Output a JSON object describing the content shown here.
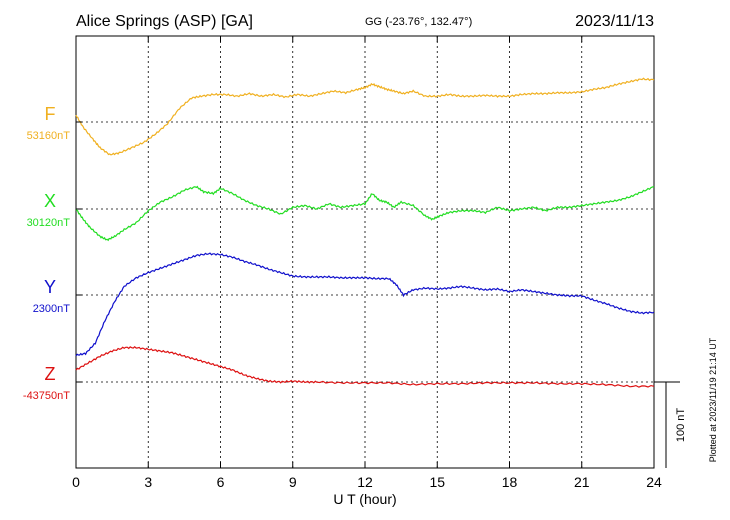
{
  "header": {
    "station": "Alice Springs (ASP)  [GA]",
    "coords": "GG (-23.76°, 132.47°)",
    "date": "2023/11/13"
  },
  "footer": {
    "plotted": "Plotted at 2023/11/19 21:14 UT"
  },
  "scale_bar": {
    "label": "100 nT",
    "value_nT": 100
  },
  "colors": {
    "F": "#f0b020",
    "X": "#22dd22",
    "Y": "#1010cc",
    "Z": "#dd1111",
    "axis": "#000000",
    "grid": "#000000"
  },
  "chart_data": {
    "type": "line",
    "xlabel": "U T (hour)",
    "xlim": [
      0,
      24
    ],
    "xticks": [
      0,
      3,
      6,
      9,
      12,
      15,
      18,
      21,
      24
    ],
    "grid": true,
    "series": [
      {
        "name": "F",
        "baseline_label": "53160nT",
        "baseline_nT": 53160,
        "x": [
          0,
          0.3,
          0.7,
          1,
          1.4,
          1.8,
          2.3,
          2.8,
          3.3,
          3.8,
          4.3,
          4.8,
          5.2,
          5.7,
          6.2,
          6.7,
          7.2,
          7.7,
          8.2,
          8.7,
          9.2,
          9.7,
          10.2,
          10.7,
          11.2,
          11.7,
          12,
          12.3,
          12.6,
          12.9,
          13.2,
          13.6,
          14,
          14.5,
          15,
          15.5,
          16,
          16.5,
          17,
          17.5,
          18,
          18.5,
          19,
          19.5,
          20,
          20.5,
          21,
          21.5,
          22,
          22.5,
          23,
          23.5,
          24
        ],
        "y": [
          8,
          -6,
          -20,
          -30,
          -38,
          -36,
          -30,
          -24,
          -14,
          -2,
          16,
          28,
          30,
          32,
          32,
          30,
          33,
          30,
          32,
          29,
          32,
          30,
          33,
          36,
          34,
          38,
          40,
          44,
          41,
          38,
          36,
          33,
          36,
          30,
          30,
          32,
          30,
          30,
          31,
          30,
          30,
          32,
          33,
          33,
          34,
          34,
          35,
          38,
          40,
          44,
          47,
          50,
          49
        ]
      },
      {
        "name": "X",
        "baseline_label": "30120nT",
        "baseline_nT": 30120,
        "x": [
          0,
          0.3,
          0.6,
          1,
          1.3,
          1.6,
          2,
          2.5,
          3,
          3.5,
          4,
          4.5,
          5,
          5.3,
          5.7,
          6,
          6.5,
          7,
          7.5,
          8,
          8.5,
          9,
          9.5,
          10,
          10.5,
          11,
          11.5,
          12,
          12.3,
          12.6,
          12.9,
          13.2,
          13.5,
          14,
          14.5,
          14.8,
          15.1,
          15.5,
          16,
          16.5,
          17,
          17.5,
          18,
          18.5,
          19,
          19.5,
          20,
          20.5,
          21,
          21.5,
          22,
          22.5,
          23,
          23.5,
          24
        ],
        "y": [
          0,
          -12,
          -22,
          -32,
          -36,
          -32,
          -24,
          -16,
          -2,
          8,
          14,
          22,
          26,
          20,
          18,
          24,
          18,
          10,
          4,
          0,
          -6,
          2,
          4,
          0,
          6,
          2,
          4,
          6,
          18,
          10,
          8,
          2,
          8,
          4,
          -8,
          -12,
          -8,
          -4,
          -2,
          -2,
          -4,
          2,
          -2,
          0,
          2,
          -2,
          2,
          2,
          4,
          6,
          8,
          10,
          14,
          20,
          26
        ]
      },
      {
        "name": "Y",
        "baseline_label": "2300nT",
        "baseline_nT": 2300,
        "x": [
          0,
          0.4,
          0.8,
          1.2,
          1.6,
          2,
          2.5,
          3,
          3.5,
          4,
          4.5,
          5,
          5.5,
          6,
          6.5,
          7,
          7.5,
          8,
          8.5,
          9,
          9.5,
          10,
          10.5,
          11,
          11.5,
          12,
          12.5,
          13,
          13.3,
          13.6,
          14,
          14.5,
          15,
          15.5,
          16,
          16.5,
          17,
          17.5,
          18,
          18.5,
          19,
          19.5,
          20,
          20.5,
          21,
          21.5,
          22,
          22.5,
          23,
          23.5,
          24
        ],
        "y": [
          -70,
          -68,
          -56,
          -30,
          -8,
          10,
          20,
          26,
          31,
          36,
          41,
          46,
          48,
          47,
          44,
          39,
          35,
          30,
          26,
          22,
          21,
          21,
          21,
          20,
          20,
          20,
          19,
          19,
          12,
          0,
          6,
          8,
          7,
          8,
          10,
          8,
          6,
          7,
          4,
          6,
          4,
          2,
          0,
          -1,
          -1,
          -6,
          -10,
          -15,
          -19,
          -21,
          -20
        ]
      },
      {
        "name": "Z",
        "baseline_label": "-43750nT",
        "baseline_nT": -43750,
        "x": [
          0,
          0.5,
          1,
          1.5,
          2,
          2.5,
          3,
          3.5,
          4,
          4.5,
          5,
          5.5,
          6,
          6.5,
          7,
          7.5,
          8,
          8.5,
          9,
          9.5,
          10,
          11,
          12,
          13,
          14,
          15,
          16,
          17,
          18,
          19,
          20,
          21,
          22,
          23,
          24
        ],
        "y": [
          14,
          22,
          30,
          36,
          40,
          40,
          38,
          36,
          34,
          30,
          26,
          22,
          18,
          14,
          8,
          4,
          1,
          0,
          1,
          0,
          0,
          -1,
          -1,
          -1,
          -3,
          -2,
          -2,
          -1,
          -1,
          -1,
          -2,
          -2,
          -3,
          -5,
          -5
        ]
      }
    ]
  }
}
